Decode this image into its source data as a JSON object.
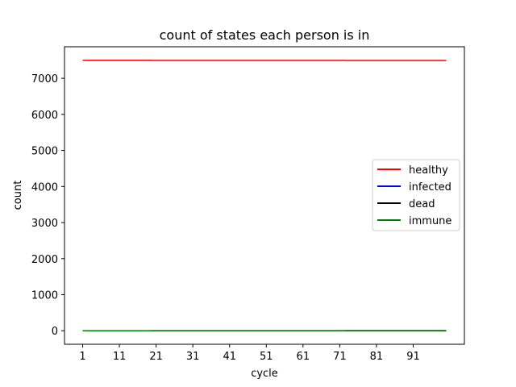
{
  "chart_data": {
    "type": "line",
    "title": "count of states each person is in",
    "xlabel": "cycle",
    "ylabel": "count",
    "x_start": 1,
    "x_end": 100,
    "xlim": [
      -3.95,
      104.95
    ],
    "ylim": [
      -375,
      7875
    ],
    "x_ticks": [
      1,
      11,
      21,
      31,
      41,
      51,
      61,
      71,
      81,
      91
    ],
    "y_ticks": [
      0,
      1000,
      2000,
      3000,
      4000,
      5000,
      6000,
      7000
    ],
    "grid": false,
    "legend_position": "center-right",
    "series": [
      {
        "name": "healthy",
        "color": "#ff0000",
        "value_start": 7500,
        "value_end": 7495
      },
      {
        "name": "infected",
        "color": "#0000ff",
        "value_start": 0,
        "value_end": 0
      },
      {
        "name": "dead",
        "color": "#000000",
        "value_start": 0,
        "value_end": 0
      },
      {
        "name": "immune",
        "color": "#008000",
        "value_start": 0,
        "value_end": 5
      }
    ]
  }
}
